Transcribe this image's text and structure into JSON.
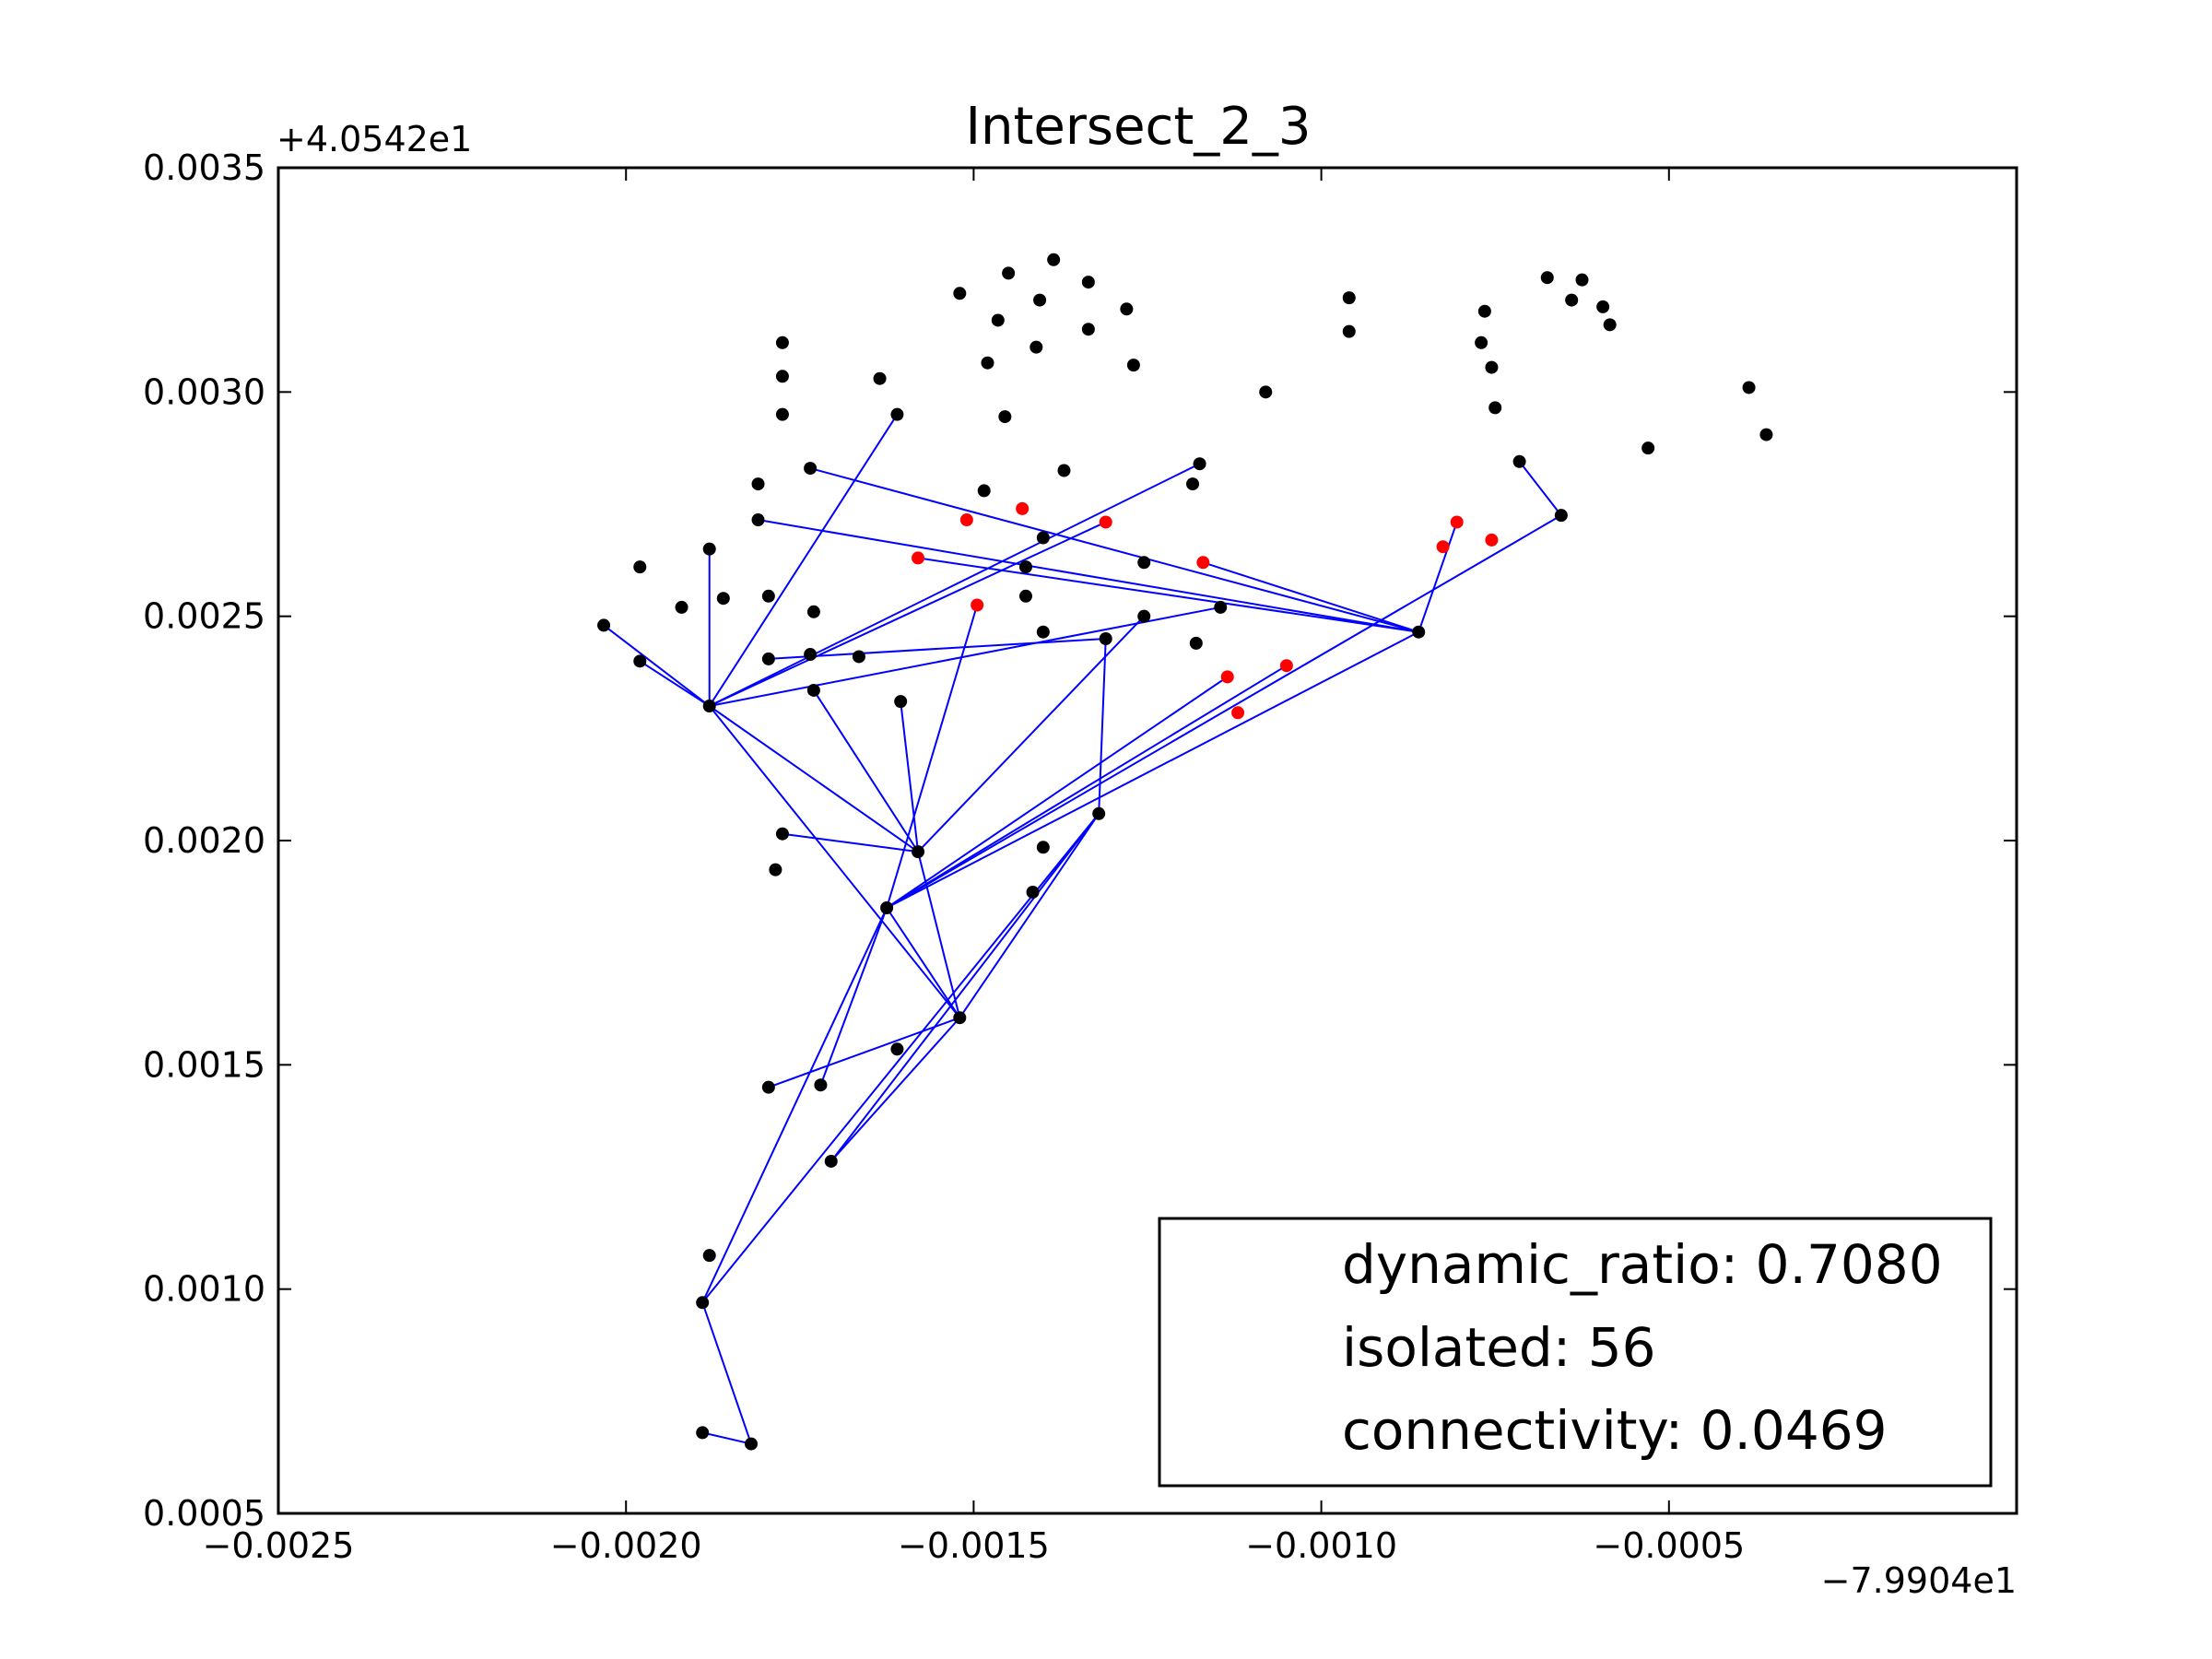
{
  "chart_data": {
    "type": "scatter",
    "title": "Intersect_2_3",
    "xlabel": "",
    "ylabel": "",
    "x_offset_label": "−7.9904e1",
    "y_offset_label": "+4.0542e1",
    "xlim": [
      -0.0025,
      0.0
    ],
    "ylim": [
      0.0005,
      0.0035
    ],
    "x_ticks": [
      -0.0025,
      -0.002,
      -0.0015,
      -0.001,
      -0.0005
    ],
    "x_tick_labels": [
      "−0.0025",
      "−0.0020",
      "−0.0015",
      "−0.0010",
      "−0.0005"
    ],
    "y_ticks": [
      0.0005,
      0.001,
      0.0015,
      0.002,
      0.0025,
      0.003,
      0.0035
    ],
    "y_tick_labels": [
      "0.0005",
      "0.0010",
      "0.0015",
      "0.0020",
      "0.0025",
      "0.0030",
      "0.0035"
    ],
    "grid": false,
    "colors": {
      "black_points": "#000000",
      "red_points": "#ff0000",
      "edges": "#0000ff"
    },
    "legend": {
      "placement": "lower-right",
      "entries": [
        "dynamic_ratio: 0.7080",
        "isolated: 56",
        "connectivity: 0.0469"
      ]
    },
    "black_points": [
      [
        -0.002032,
        0.00248
      ],
      [
        -0.00198,
        0.00261
      ],
      [
        -0.00198,
        0.0024
      ],
      [
        -0.00192,
        0.00252
      ],
      [
        -0.00188,
        0.00265
      ],
      [
        -0.00188,
        0.0023
      ],
      [
        -0.00186,
        0.00254
      ],
      [
        -0.00181,
        0.002795
      ],
      [
        -0.00181,
        0.002715
      ],
      [
        -0.001795,
        0.002545
      ],
      [
        -0.001795,
        0.002405
      ],
      [
        -0.001795,
        0.00145
      ],
      [
        -0.001775,
        0.00311
      ],
      [
        -0.001775,
        0.003035
      ],
      [
        -0.001775,
        0.00295
      ],
      [
        -0.001785,
        0.001935
      ],
      [
        -0.001775,
        0.002015
      ],
      [
        -0.001735,
        0.00283
      ],
      [
        -0.001735,
        0.002415
      ],
      [
        -0.00173,
        0.002335
      ],
      [
        -0.00173,
        0.00251
      ],
      [
        -0.00172,
        0.001455
      ],
      [
        -0.001705,
        0.001285
      ],
      [
        -0.001665,
        0.00241
      ],
      [
        -0.001635,
        0.00303
      ],
      [
        -0.001625,
        0.00185
      ],
      [
        -0.00161,
        0.00295
      ],
      [
        -0.001605,
        0.00231
      ],
      [
        -0.00161,
        0.001535
      ],
      [
        -0.00158,
        0.001975
      ],
      [
        -0.00152,
        0.00322
      ],
      [
        -0.00152,
        0.001605
      ],
      [
        -0.001485,
        0.00278
      ],
      [
        -0.00148,
        0.003065
      ],
      [
        -0.001465,
        0.00316
      ],
      [
        -0.001455,
        0.002945
      ],
      [
        -0.00145,
        0.003265
      ],
      [
        -0.001425,
        0.00261
      ],
      [
        -0.001425,
        0.002545
      ],
      [
        -0.001415,
        0.001885
      ],
      [
        -0.00141,
        0.0031
      ],
      [
        -0.001405,
        0.003205
      ],
      [
        -0.0014,
        0.002675
      ],
      [
        -0.0014,
        0.002465
      ],
      [
        -0.0014,
        0.001985
      ],
      [
        -0.001385,
        0.003295
      ],
      [
        -0.00137,
        0.002825
      ],
      [
        -0.001335,
        0.00314
      ],
      [
        -0.001335,
        0.003245
      ],
      [
        -0.00132,
        0.00206
      ],
      [
        -0.00131,
        0.00245
      ],
      [
        -0.00128,
        0.003185
      ],
      [
        -0.00127,
        0.00306
      ],
      [
        -0.001255,
        0.00262
      ],
      [
        -0.001255,
        0.0025
      ],
      [
        -0.001185,
        0.002795
      ],
      [
        -0.00118,
        0.00244
      ],
      [
        -0.001175,
        0.00284
      ],
      [
        -0.001145,
        0.00252
      ],
      [
        -0.00108,
        0.003
      ],
      [
        -0.00096,
        0.00321
      ],
      [
        -0.00096,
        0.003135
      ],
      [
        -0.00086,
        0.002465
      ],
      [
        -0.000765,
        0.00318
      ],
      [
        -0.00077,
        0.00311
      ],
      [
        -0.000755,
        0.003055
      ],
      [
        -0.00075,
        0.002965
      ],
      [
        -0.000715,
        0.002845
      ],
      [
        -0.000675,
        0.003255
      ],
      [
        -0.000655,
        0.002725
      ],
      [
        -0.00064,
        0.003205
      ],
      [
        -0.000625,
        0.00325
      ],
      [
        -0.000595,
        0.00319
      ],
      [
        -0.000585,
        0.00315
      ],
      [
        -0.00053,
        0.002875
      ],
      [
        -0.000385,
        0.00301
      ],
      [
        -0.00036,
        0.002905
      ],
      [
        -0.00188,
        0.001075
      ],
      [
        -0.00189,
        0.00097
      ],
      [
        -0.00189,
        0.00068
      ],
      [
        -0.00182,
        0.000655
      ]
    ],
    "red_points": [
      [
        -0.00158,
        0.00263
      ],
      [
        -0.00151,
        0.002715
      ],
      [
        -0.001495,
        0.002525
      ],
      [
        -0.00143,
        0.00274
      ],
      [
        -0.00131,
        0.00271
      ],
      [
        -0.00117,
        0.00262
      ],
      [
        -0.001135,
        0.002365
      ],
      [
        -0.00112,
        0.002285
      ],
      [
        -0.00105,
        0.00239
      ],
      [
        -0.000825,
        0.002655
      ],
      [
        -0.000805,
        0.00271
      ],
      [
        -0.000755,
        0.00267
      ]
    ],
    "edges": [
      [
        [
          -0.002032,
          0.00248
        ],
        [
          -0.00188,
          0.0023
        ]
      ],
      [
        [
          -0.00198,
          0.0024
        ],
        [
          -0.00188,
          0.0023
        ]
      ],
      [
        [
          -0.00188,
          0.00265
        ],
        [
          -0.00188,
          0.0023
        ]
      ],
      [
        [
          -0.00161,
          0.00295
        ],
        [
          -0.00188,
          0.0023
        ]
      ],
      [
        [
          -0.00188,
          0.0023
        ],
        [
          -0.001175,
          0.00284
        ]
      ],
      [
        [
          -0.00188,
          0.0023
        ],
        [
          -0.00131,
          0.00271
        ]
      ],
      [
        [
          -0.00188,
          0.0023
        ],
        [
          -0.001145,
          0.00252
        ]
      ],
      [
        [
          -0.00188,
          0.0023
        ],
        [
          -0.00158,
          0.001975
        ]
      ],
      [
        [
          -0.00188,
          0.0023
        ],
        [
          -0.00152,
          0.001605
        ]
      ],
      [
        [
          -0.001735,
          0.00283
        ],
        [
          -0.00086,
          0.002465
        ]
      ],
      [
        [
          -0.00181,
          0.002715
        ],
        [
          -0.00086,
          0.002465
        ]
      ],
      [
        [
          -0.00158,
          0.00263
        ],
        [
          -0.00086,
          0.002465
        ]
      ],
      [
        [
          -0.00117,
          0.00262
        ],
        [
          -0.00086,
          0.002465
        ]
      ],
      [
        [
          -0.00086,
          0.002465
        ],
        [
          -0.000805,
          0.00271
        ]
      ],
      [
        [
          -0.001795,
          0.002405
        ],
        [
          -0.00131,
          0.00245
        ]
      ],
      [
        [
          -0.00173,
          0.002335
        ],
        [
          -0.00158,
          0.001975
        ]
      ],
      [
        [
          -0.001775,
          0.002015
        ],
        [
          -0.00158,
          0.001975
        ]
      ],
      [
        [
          -0.001605,
          0.00231
        ],
        [
          -0.00158,
          0.001975
        ]
      ],
      [
        [
          -0.00158,
          0.001975
        ],
        [
          -0.001255,
          0.0025
        ]
      ],
      [
        [
          -0.001495,
          0.002525
        ],
        [
          -0.001625,
          0.00185
        ]
      ],
      [
        [
          -0.001625,
          0.00185
        ],
        [
          -0.001135,
          0.002365
        ]
      ],
      [
        [
          -0.001625,
          0.00185
        ],
        [
          -0.00105,
          0.00239
        ]
      ],
      [
        [
          -0.001625,
          0.00185
        ],
        [
          -0.00086,
          0.002465
        ]
      ],
      [
        [
          -0.001625,
          0.00185
        ],
        [
          -0.00172,
          0.001455
        ]
      ],
      [
        [
          -0.001625,
          0.00185
        ],
        [
          -0.00152,
          0.001605
        ]
      ],
      [
        [
          -0.00158,
          0.001975
        ],
        [
          -0.00152,
          0.001605
        ]
      ],
      [
        [
          -0.001795,
          0.00145
        ],
        [
          -0.00152,
          0.001605
        ]
      ],
      [
        [
          -0.00131,
          0.00245
        ],
        [
          -0.00132,
          0.00206
        ]
      ],
      [
        [
          -0.00152,
          0.001605
        ],
        [
          -0.00132,
          0.00206
        ]
      ],
      [
        [
          -0.001705,
          0.001285
        ],
        [
          -0.00132,
          0.00206
        ]
      ],
      [
        [
          -0.001705,
          0.001285
        ],
        [
          -0.00152,
          0.001605
        ]
      ],
      [
        [
          -0.00189,
          0.00097
        ],
        [
          -0.001625,
          0.00185
        ]
      ],
      [
        [
          -0.00189,
          0.00097
        ],
        [
          -0.00132,
          0.00206
        ]
      ],
      [
        [
          -0.00189,
          0.00097
        ],
        [
          -0.00182,
          0.000655
        ]
      ],
      [
        [
          -0.00189,
          0.00068
        ],
        [
          -0.00182,
          0.000655
        ]
      ],
      [
        [
          -0.000715,
          0.002845
        ],
        [
          -0.000655,
          0.002725
        ]
      ],
      [
        [
          -0.000655,
          0.002725
        ],
        [
          -0.001625,
          0.00185
        ]
      ],
      [
        [
          -0.001795,
          0.002545
        ],
        [
          -0.001795,
          0.002545
        ]
      ]
    ]
  }
}
